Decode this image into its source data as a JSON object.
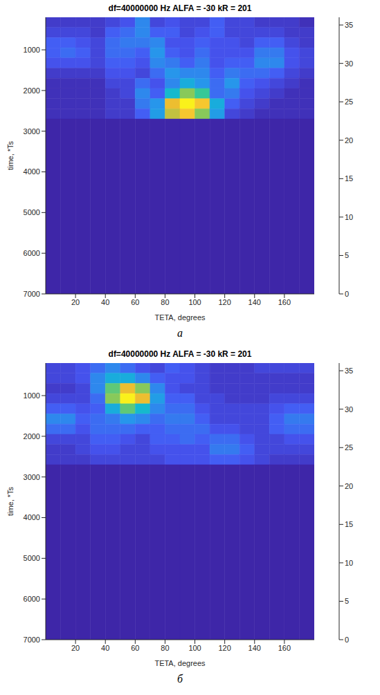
{
  "chart_data": [
    {
      "type": "heatmap",
      "title": "df=40000000 Hz ALFA = -30 kR = 201",
      "caption": "а",
      "x_label": "TETA, degrees",
      "y_label": "time, *Ts",
      "xlim": [
        0,
        180
      ],
      "xticks": [
        20,
        40,
        60,
        80,
        100,
        120,
        140,
        160
      ],
      "ylim": [
        200,
        7000
      ],
      "yticks": [
        1000,
        2000,
        3000,
        4000,
        5000,
        6000,
        7000
      ],
      "x_edges": [
        0,
        10,
        20,
        30,
        40,
        50,
        60,
        70,
        80,
        90,
        100,
        110,
        120,
        130,
        140,
        150,
        160,
        170,
        180
      ],
      "y_edges": [
        200,
        450,
        700,
        950,
        1200,
        1450,
        1700,
        1950,
        2200,
        2450,
        2700,
        7000
      ],
      "cells": [
        [
          2,
          2,
          2,
          2,
          3,
          4,
          8,
          3,
          4,
          3,
          3,
          5,
          3,
          3,
          2,
          2,
          2,
          1
        ],
        [
          3,
          3,
          3,
          2,
          5,
          6,
          8,
          5,
          5,
          3,
          4,
          5,
          3,
          3,
          3,
          3,
          2,
          2
        ],
        [
          5,
          5,
          4,
          3,
          6,
          7,
          7,
          8,
          4,
          4,
          5,
          4,
          4,
          3,
          5,
          5,
          3,
          2
        ],
        [
          5,
          6,
          5,
          3,
          6,
          6,
          5,
          9,
          5,
          4,
          6,
          4,
          4,
          4,
          7,
          7,
          4,
          3
        ],
        [
          4,
          4,
          4,
          3,
          5,
          5,
          4,
          8,
          7,
          5,
          7,
          4,
          5,
          5,
          8,
          8,
          4,
          3
        ],
        [
          2,
          2,
          2,
          2,
          4,
          4,
          3,
          6,
          9,
          8,
          8,
          5,
          7,
          6,
          6,
          5,
          3,
          2
        ],
        [
          1,
          1,
          1,
          1,
          3,
          3,
          6,
          4,
          8,
          12,
          9,
          6,
          9,
          5,
          4,
          3,
          2,
          1
        ],
        [
          1,
          1,
          1,
          1,
          2,
          3,
          8,
          5,
          14,
          22,
          18,
          6,
          7,
          4,
          3,
          2,
          1,
          1
        ],
        [
          1,
          1,
          1,
          1,
          2,
          2,
          7,
          9,
          28,
          35,
          30,
          12,
          5,
          3,
          2,
          1,
          1,
          1
        ],
        [
          1,
          1,
          1,
          1,
          2,
          2,
          5,
          10,
          25,
          30,
          22,
          10,
          3,
          2,
          1,
          1,
          1,
          1
        ],
        [
          0,
          0,
          0,
          0,
          0,
          0,
          0,
          0,
          0,
          0,
          0,
          0,
          0,
          0,
          0,
          0,
          0,
          0
        ]
      ],
      "colorbar": {
        "range": [
          0,
          36
        ],
        "ticks": [
          0,
          5,
          10,
          15,
          20,
          25,
          30,
          35
        ]
      }
    },
    {
      "type": "heatmap",
      "title": "df=40000000 Hz ALFA = -30 kR = 201",
      "caption": "б",
      "x_label": "TETA, degrees",
      "y_label": "time, *Ts",
      "xlim": [
        0,
        180
      ],
      "xticks": [
        20,
        40,
        60,
        80,
        100,
        120,
        140,
        160
      ],
      "ylim": [
        200,
        7000
      ],
      "yticks": [
        1000,
        2000,
        3000,
        4000,
        5000,
        6000,
        7000
      ],
      "x_edges": [
        0,
        10,
        20,
        30,
        40,
        50,
        60,
        70,
        80,
        90,
        100,
        110,
        120,
        130,
        140,
        150,
        160,
        170,
        180
      ],
      "y_edges": [
        200,
        450,
        700,
        950,
        1200,
        1450,
        1700,
        1950,
        2200,
        2450,
        2700,
        7000
      ],
      "cells": [
        [
          3,
          3,
          4,
          6,
          8,
          6,
          4,
          3,
          5,
          4,
          3,
          2,
          2,
          2,
          3,
          3,
          3,
          3
        ],
        [
          3,
          3,
          4,
          8,
          12,
          12,
          8,
          5,
          4,
          4,
          3,
          2,
          2,
          2,
          2,
          2,
          2,
          2
        ],
        [
          2,
          2,
          3,
          8,
          20,
          28,
          22,
          8,
          4,
          3,
          3,
          2,
          2,
          2,
          2,
          2,
          2,
          2
        ],
        [
          3,
          3,
          3,
          6,
          22,
          35,
          28,
          10,
          5,
          5,
          3,
          3,
          2,
          2,
          2,
          3,
          3,
          3
        ],
        [
          5,
          5,
          4,
          5,
          12,
          20,
          14,
          8,
          6,
          6,
          4,
          3,
          3,
          3,
          3,
          4,
          5,
          5
        ],
        [
          8,
          8,
          5,
          6,
          7,
          9,
          8,
          6,
          7,
          7,
          5,
          3,
          3,
          3,
          3,
          5,
          7,
          7
        ],
        [
          6,
          6,
          4,
          6,
          6,
          6,
          5,
          5,
          6,
          6,
          6,
          4,
          4,
          3,
          3,
          5,
          6,
          6
        ],
        [
          3,
          3,
          3,
          5,
          5,
          4,
          3,
          5,
          5,
          6,
          5,
          6,
          6,
          4,
          3,
          3,
          4,
          4
        ],
        [
          2,
          2,
          3,
          4,
          4,
          3,
          3,
          4,
          4,
          4,
          4,
          7,
          7,
          5,
          3,
          3,
          3,
          3
        ],
        [
          2,
          2,
          2,
          3,
          3,
          3,
          3,
          3,
          4,
          4,
          4,
          5,
          5,
          4,
          3,
          2,
          2,
          2
        ],
        [
          0,
          0,
          0,
          0,
          0,
          0,
          0,
          0,
          0,
          0,
          0,
          0,
          0,
          0,
          0,
          0,
          0,
          0
        ]
      ],
      "colorbar": {
        "range": [
          0,
          36
        ],
        "ticks": [
          0,
          5,
          10,
          15,
          20,
          25,
          30,
          35
        ]
      }
    }
  ]
}
